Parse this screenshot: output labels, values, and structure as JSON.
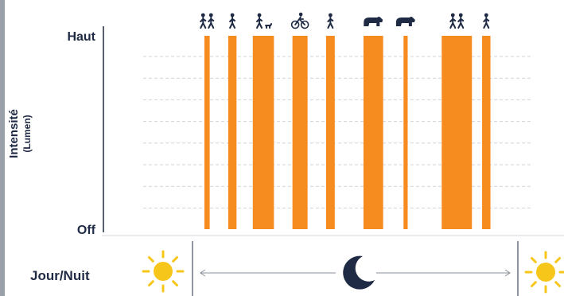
{
  "colors": {
    "bar": "#f68b1f",
    "text": "#1f2a44",
    "grid": "#cfd3da",
    "sun": "#f6c61a",
    "moon": "#1f2a44",
    "arrow": "#8a8f99"
  },
  "chart_data": {
    "type": "bar",
    "ylabel": "Intensité",
    "ylabel_unit": "(Lumen)",
    "y_ticks": [
      "Haut",
      "Off"
    ],
    "ylim": [
      "Off",
      "Haut"
    ],
    "grid": "horizontal dashed",
    "x_range": [
      0,
      100
    ],
    "bars": [
      {
        "start": 16.2,
        "end": 17.6,
        "value": 1,
        "icon": "two-pedestrians-icon"
      },
      {
        "start": 22.5,
        "end": 24.7,
        "value": 1,
        "icon": "pedestrian-icon"
      },
      {
        "start": 29.0,
        "end": 34.6,
        "value": 1,
        "icon": "person-with-dog-icon"
      },
      {
        "start": 39.5,
        "end": 43.5,
        "value": 1,
        "icon": "cyclist-icon"
      },
      {
        "start": 48.4,
        "end": 50.7,
        "value": 1,
        "icon": "pedestrian-icon"
      },
      {
        "start": 58.3,
        "end": 63.5,
        "value": 1,
        "icon": "bear-icon"
      },
      {
        "start": 68.9,
        "end": 70.0,
        "value": 1,
        "icon": "bear-icon"
      },
      {
        "start": 79.0,
        "end": 87.0,
        "value": 1,
        "icon": "two-pedestrians-icon"
      },
      {
        "start": 89.7,
        "end": 91.9,
        "value": 1,
        "icon": "pedestrian-icon"
      }
    ]
  },
  "day_night": {
    "label": "Jour/Nuit",
    "left_icon": "sun-icon",
    "center_icon": "moon-icon",
    "right_icon": "sun-icon"
  }
}
